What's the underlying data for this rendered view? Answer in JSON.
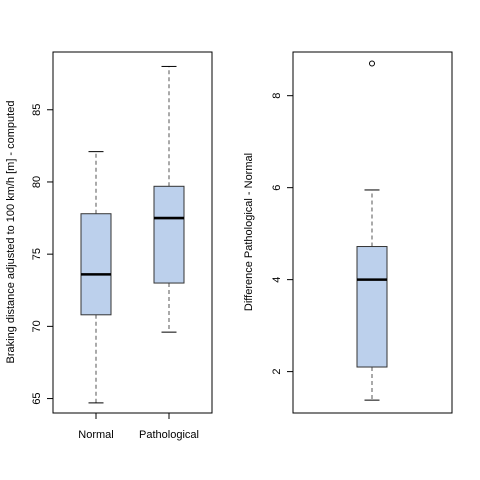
{
  "chart_data": [
    {
      "type": "box",
      "ylabel": "Braking distance adjusted to 100 km/h [m] - computed",
      "xlabel": "",
      "categories": [
        "Normal",
        "Pathological"
      ],
      "yticks": [
        65,
        70,
        75,
        80,
        85
      ],
      "ylim": [
        64,
        89
      ],
      "box_color": "#bcd0ec",
      "boxes": [
        {
          "name": "Normal",
          "whisker_low": 64.7,
          "q1": 70.8,
          "median": 73.6,
          "q3": 77.8,
          "whisker_high": 82.1,
          "outliers": []
        },
        {
          "name": "Pathological",
          "whisker_low": 69.6,
          "q1": 73.0,
          "median": 77.5,
          "q3": 79.7,
          "whisker_high": 88.0,
          "outliers": []
        }
      ]
    },
    {
      "type": "box",
      "ylabel": "Difference Pathological - Normal",
      "xlabel": "",
      "categories": [
        ""
      ],
      "yticks": [
        2,
        4,
        6,
        8
      ],
      "ylim": [
        1.1,
        8.95
      ],
      "box_color": "#bcd0ec",
      "boxes": [
        {
          "name": "",
          "whisker_low": 1.38,
          "q1": 2.1,
          "median": 4.0,
          "q3": 4.72,
          "whisker_high": 5.95,
          "outliers": [
            8.7
          ]
        }
      ]
    }
  ]
}
